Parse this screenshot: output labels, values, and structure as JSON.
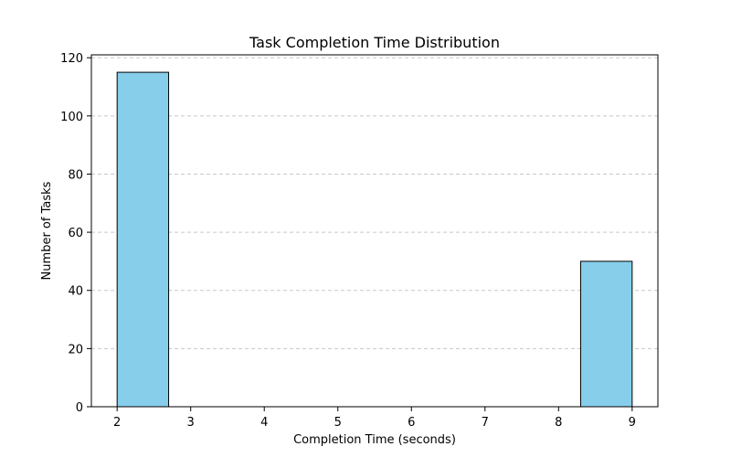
{
  "chart_data": {
    "type": "bar",
    "title": "Task Completion Time Distribution",
    "xlabel": "Completion Time (seconds)",
    "ylabel": "Number of Tasks",
    "xlim": [
      1.65,
      9.35
    ],
    "ylim": [
      0,
      121
    ],
    "x_ticks": [
      2,
      3,
      4,
      5,
      6,
      7,
      8,
      9
    ],
    "y_ticks": [
      0,
      20,
      40,
      60,
      80,
      100,
      120
    ],
    "grid": {
      "axis": "y",
      "style": "dashed",
      "color": "#c8c8c8"
    },
    "bar_color": "#87CEEB",
    "edge_color": "#000000",
    "bins": [
      {
        "x_start": 2.0,
        "x_end": 2.7,
        "value": 115
      },
      {
        "x_start": 2.7,
        "x_end": 3.4,
        "value": 0
      },
      {
        "x_start": 3.4,
        "x_end": 4.1,
        "value": 0
      },
      {
        "x_start": 4.1,
        "x_end": 4.8,
        "value": 0
      },
      {
        "x_start": 4.8,
        "x_end": 5.5,
        "value": 0
      },
      {
        "x_start": 5.5,
        "x_end": 6.2,
        "value": 0
      },
      {
        "x_start": 6.2,
        "x_end": 6.9,
        "value": 0
      },
      {
        "x_start": 6.9,
        "x_end": 7.6,
        "value": 0
      },
      {
        "x_start": 7.6,
        "x_end": 8.3,
        "value": 0
      },
      {
        "x_start": 8.3,
        "x_end": 9.0,
        "value": 50
      }
    ]
  }
}
